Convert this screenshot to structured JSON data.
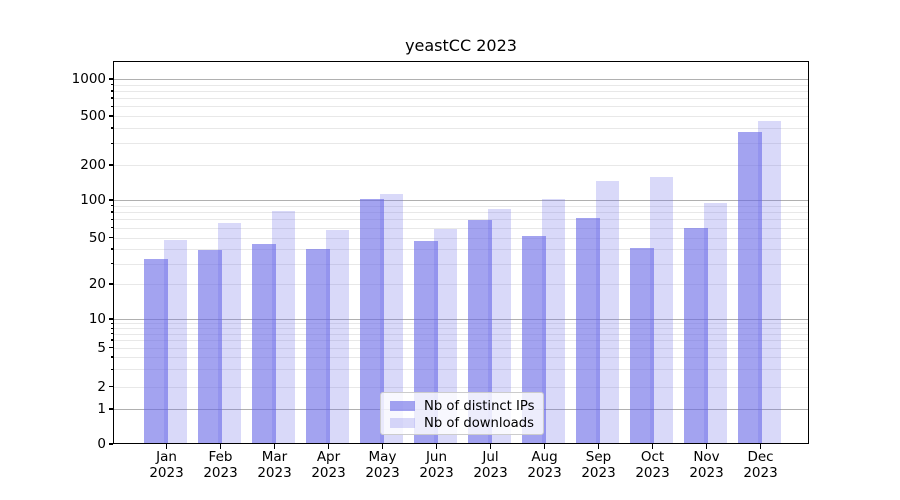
{
  "chart_data": {
    "type": "bar",
    "title": "yeastCC 2023",
    "yscale": "symlog",
    "months": [
      "Jan",
      "Feb",
      "Mar",
      "Apr",
      "May",
      "Jun",
      "Jul",
      "Aug",
      "Sep",
      "Oct",
      "Nov",
      "Dec"
    ],
    "year_label": "2023",
    "series": [
      {
        "name": "Nb of distinct IPs",
        "color": "#6666e6",
        "alpha": 0.6,
        "values": [
          33,
          39,
          44,
          40,
          102,
          47,
          69,
          52,
          72,
          41,
          60,
          370
        ]
      },
      {
        "name": "Nb of downloads",
        "color": "#6666e6",
        "alpha": 0.25,
        "values": [
          48,
          66,
          82,
          58,
          113,
          59,
          84,
          103,
          145,
          158,
          95,
          455
        ]
      }
    ],
    "yticks": {
      "values": [
        0,
        1,
        2,
        5,
        10,
        20,
        50,
        100,
        200,
        500,
        1000
      ],
      "labels": [
        "0",
        "1",
        "2",
        "5",
        "10",
        "20",
        "50",
        "100",
        "200",
        "500",
        "1000"
      ]
    },
    "ylim": [
      0,
      1400
    ],
    "grid": true,
    "legend_position": "lower center"
  },
  "colors": {
    "grid_major": "#b0b0b0",
    "grid_minor": "#e8e8e8",
    "spine": "#000000",
    "legend_border": "#cccccc"
  }
}
